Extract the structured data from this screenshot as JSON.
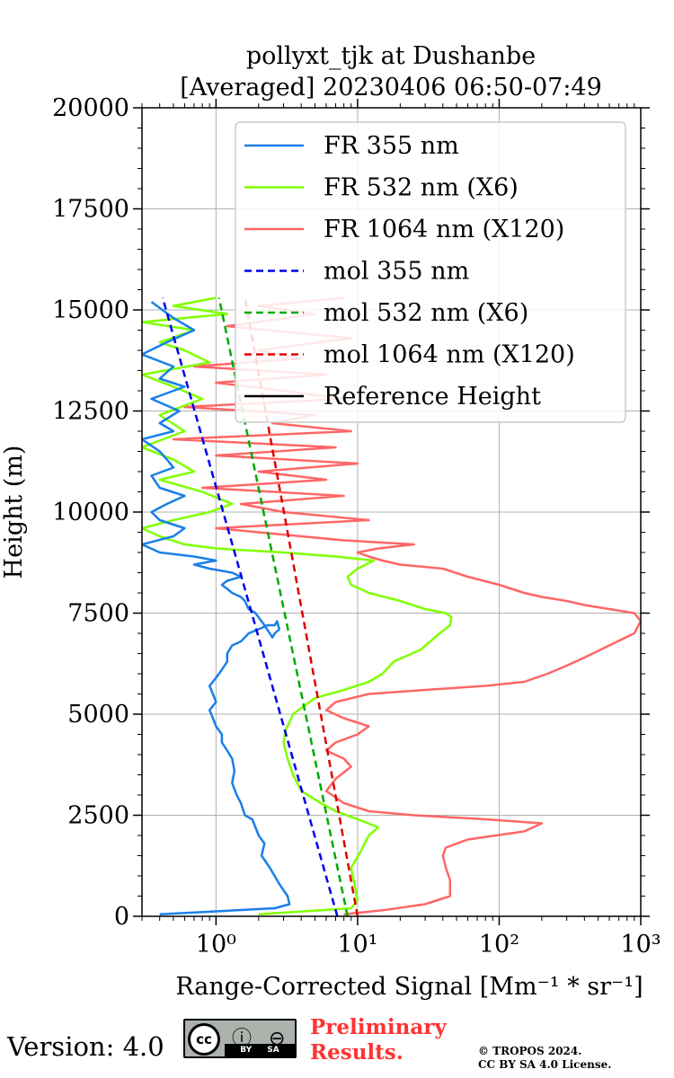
{
  "chart_data": {
    "type": "line",
    "title": [
      "pollyxt_tjk at Dushanbe",
      "[Averaged] 20230406 06:50-07:49"
    ],
    "xlabel": "Range-Corrected Signal [Mm⁻¹ * sr⁻¹]",
    "ylabel": "Height (m)",
    "xscale": "log",
    "xlim": [
      0.3,
      1000
    ],
    "ylim": [
      0,
      20000
    ],
    "xticks": [
      1,
      10,
      100,
      1000
    ],
    "xtick_labels": [
      "10⁰",
      "10¹",
      "10²",
      "10³"
    ],
    "yticks": [
      0,
      2500,
      5000,
      7500,
      10000,
      12500,
      15000,
      17500,
      20000
    ],
    "ytick_labels": [
      "0",
      "2500",
      "5000",
      "7500",
      "10000",
      "12500",
      "15000",
      "17500",
      "20000"
    ],
    "grid": true,
    "legend_position": "top-right",
    "legend": [
      {
        "label": "FR 355 nm",
        "color": "#1a7fe8",
        "dash": false
      },
      {
        "label": "FR 532 nm (X6)",
        "color": "#80ff00",
        "dash": false
      },
      {
        "label": "FR 1064 nm (X120)",
        "color": "#ff6666",
        "dash": false
      },
      {
        "label": "mol 355 nm",
        "color": "#0000ee",
        "dash": true
      },
      {
        "label": "mol 532 nm (X6)",
        "color": "#00aa00",
        "dash": true
      },
      {
        "label": "mol 1064 nm (X120)",
        "color": "#dd0000",
        "dash": true
      },
      {
        "label": "Reference Height",
        "color": "#000000",
        "dash": false
      }
    ],
    "series": [
      {
        "name": "FR 355 nm",
        "color": "#1a7fe8",
        "x": [
          0.4,
          2.6,
          3.3,
          3.2,
          2.8,
          2.4,
          2.1,
          2.2,
          2.0,
          1.9,
          1.8,
          1.6,
          1.5,
          1.4,
          1.3,
          1.35,
          1.3,
          1.2,
          1.1,
          1.1,
          1.0,
          0.95,
          0.9,
          1.0,
          0.95,
          0.9,
          1.0,
          1.1,
          1.2,
          1.2,
          1.3,
          1.5,
          1.6,
          1.7,
          2.0,
          2.3,
          2.6,
          2.7,
          2.8,
          2.6,
          2.5,
          2.2,
          1.9,
          1.7,
          1.6,
          1.5,
          1.3,
          1.2,
          1.1,
          1.2,
          1.5,
          1.3,
          0.9,
          0.7,
          1.0,
          0.7,
          0.4,
          0.3,
          0.5,
          0.6,
          0.4,
          0.35,
          0.45,
          0.6,
          0.4,
          0.35,
          0.5,
          0.45,
          0.4,
          0.3,
          0.5,
          0.4,
          0.55,
          0.35,
          0.6,
          0.4,
          0.5,
          0.3,
          0.45,
          0.7,
          0.5,
          0.35
        ],
        "y": [
          50,
          200,
          300,
          500,
          800,
          1200,
          1500,
          1800,
          2000,
          2200,
          2400,
          2500,
          2800,
          3000,
          3300,
          3600,
          3900,
          4100,
          4300,
          4500,
          4700,
          4900,
          5100,
          5300,
          5500,
          5700,
          5900,
          6100,
          6300,
          6500,
          6700,
          6800,
          6900,
          7000,
          7100,
          7200,
          7200,
          7300,
          7100,
          7000,
          6900,
          7200,
          7500,
          7600,
          7800,
          7900,
          8000,
          8100,
          8200,
          8300,
          8400,
          8500,
          8600,
          8700,
          8800,
          8900,
          9000,
          9200,
          9400,
          9600,
          9800,
          10000,
          10200,
          10400,
          10600,
          10900,
          11100,
          11300,
          11500,
          11800,
          12000,
          12200,
          12500,
          12800,
          13100,
          13300,
          13600,
          13900,
          14200,
          14500,
          14800,
          15200
        ]
      },
      {
        "name": "FR 532 nm (X6)",
        "color": "#80ff00",
        "x": [
          2.0,
          9.0,
          10.0,
          9.5,
          9.0,
          10.5,
          12.0,
          14.0,
          10.0,
          7.0,
          5.5,
          4.0,
          3.5,
          3.2,
          3.0,
          3.1,
          3.3,
          3.5,
          5.0,
          8.0,
          12.0,
          15.0,
          18.0,
          28.0,
          38.0,
          45.0,
          46.0,
          42.0,
          30.0,
          20.0,
          12.0,
          9.0,
          8.5,
          10.0,
          13.0,
          7.0,
          3.0,
          1.0,
          0.6,
          0.4,
          0.3,
          0.5,
          0.9,
          1.3,
          0.8,
          0.4,
          0.7,
          0.5,
          0.3,
          0.6,
          0.4,
          0.8,
          0.5,
          0.3,
          0.9,
          0.6,
          0.4,
          0.7,
          0.3,
          1.2,
          0.5,
          1.0
        ],
        "y": [
          50,
          200,
          400,
          800,
          1200,
          1600,
          2000,
          2200,
          2400,
          2600,
          2800,
          3100,
          3500,
          3900,
          4300,
          4600,
          4800,
          5000,
          5400,
          5600,
          5800,
          6000,
          6300,
          6600,
          7000,
          7200,
          7400,
          7500,
          7600,
          7800,
          8000,
          8200,
          8400,
          8600,
          8800,
          8900,
          9000,
          9100,
          9200,
          9400,
          9600,
          9800,
          10000,
          10200,
          10500,
          10800,
          11000,
          11300,
          11600,
          12000,
          12400,
          12800,
          13100,
          13400,
          13700,
          14000,
          14200,
          14500,
          14700,
          14900,
          15100,
          15300
        ]
      },
      {
        "name": "FR 1064 nm (X120)",
        "color": "#ff6666",
        "x": [
          8.0,
          15.0,
          30.0,
          45.0,
          45.0,
          42.0,
          40.0,
          42.0,
          60.0,
          150.0,
          200.0,
          80.0,
          25.0,
          12.0,
          8.0,
          6.0,
          7.0,
          9.0,
          8.0,
          6.0,
          7.0,
          10.0,
          12.0,
          8.0,
          6.0,
          7.0,
          12.0,
          30.0,
          80.0,
          150.0,
          220.0,
          300.0,
          400.0,
          600.0,
          900.0,
          1000.0,
          900.0,
          600.0,
          400.0,
          300.0,
          200.0,
          150.0,
          100.0,
          60.0,
          40.0,
          20.0,
          15.0,
          12.0,
          10.0,
          14.0,
          25.0,
          8.0,
          4.0,
          2.0,
          1.0,
          12.0,
          3.0,
          1.5,
          8.0,
          0.8,
          6.0,
          2.0,
          10.0,
          1.0,
          7.0,
          0.5,
          9.0,
          2.5,
          5.0,
          0.6,
          8.0,
          3.0,
          1.0,
          6.0,
          0.7,
          4.0,
          2.0,
          9.0,
          1.2,
          5.0,
          2.0,
          8.0
        ],
        "y": [
          50,
          150,
          300,
          500,
          900,
          1200,
          1500,
          1700,
          1900,
          2100,
          2300,
          2400,
          2500,
          2600,
          2800,
          3100,
          3400,
          3700,
          3900,
          4100,
          4300,
          4500,
          4700,
          4900,
          5100,
          5300,
          5500,
          5600,
          5700,
          5800,
          6000,
          6200,
          6400,
          6700,
          7000,
          7300,
          7500,
          7600,
          7700,
          7800,
          7900,
          8000,
          8200,
          8400,
          8600,
          8700,
          8800,
          8900,
          9000,
          9100,
          9200,
          9300,
          9400,
          9500,
          9600,
          9800,
          10000,
          10200,
          10400,
          10600,
          10800,
          11000,
          11200,
          11400,
          11600,
          11800,
          12000,
          12200,
          12400,
          12600,
          12800,
          13000,
          13200,
          13400,
          13600,
          13800,
          14000,
          14300,
          14600,
          14900,
          15100,
          15300
        ]
      },
      {
        "name": "mol 355 nm",
        "color": "#0000ee",
        "dash": true,
        "x": [
          7.2,
          0.42
        ],
        "y": [
          0,
          15300
        ]
      },
      {
        "name": "mol 532 nm (X6)",
        "color": "#00aa00",
        "dash": true,
        "x": [
          8.5,
          1.05
        ],
        "y": [
          0,
          15300
        ]
      },
      {
        "name": "mol 1064 nm (X120)",
        "color": "#dd0000",
        "dash": true,
        "x": [
          10.0,
          1.6
        ],
        "y": [
          0,
          15300
        ]
      }
    ]
  },
  "footer": {
    "version": "Version: 4.0",
    "cc_badge": "cc BY SA",
    "cc_icons": "ⓘ ⊖",
    "cc_strip": "BY SA",
    "preliminary_line1": "Preliminary",
    "preliminary_line2": "Results.",
    "copyright_line1": "© TROPOS 2024.",
    "copyright_line2": "CC BY SA 4.0 License."
  }
}
